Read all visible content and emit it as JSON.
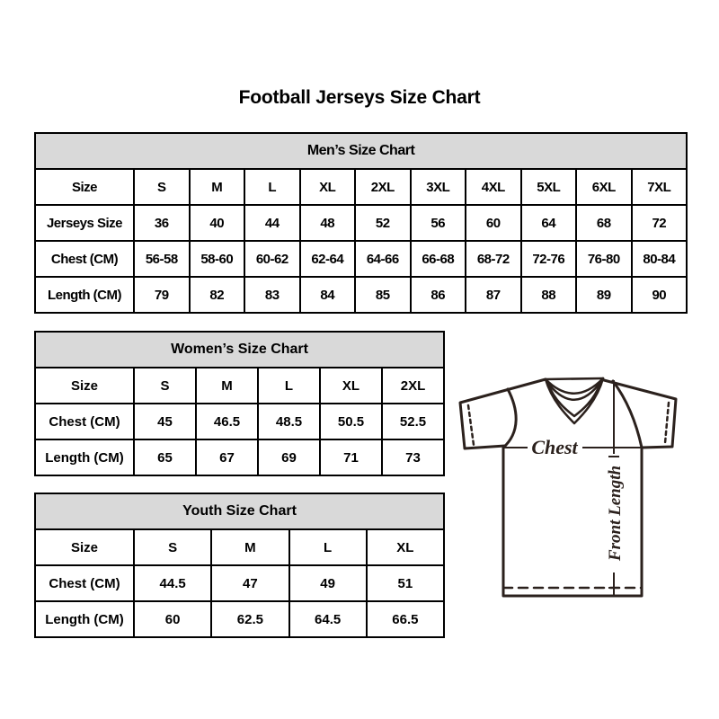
{
  "page": {
    "title": "Football Jerseys Size Chart"
  },
  "tables": {
    "men": {
      "header": "Men’s Size Chart",
      "rows": [
        {
          "label": "Size",
          "values": [
            "S",
            "M",
            "L",
            "XL",
            "2XL",
            "3XL",
            "4XL",
            "5XL",
            "6XL",
            "7XL"
          ]
        },
        {
          "label": "Jerseys Size",
          "values": [
            "36",
            "40",
            "44",
            "48",
            "52",
            "56",
            "60",
            "64",
            "68",
            "72"
          ]
        },
        {
          "label": "Chest (CM)",
          "values": [
            "56-58",
            "58-60",
            "60-62",
            "62-64",
            "64-66",
            "66-68",
            "68-72",
            "72-76",
            "76-80",
            "80-84"
          ]
        },
        {
          "label": "Length (CM)",
          "values": [
            "79",
            "82",
            "83",
            "84",
            "85",
            "86",
            "87",
            "88",
            "89",
            "90"
          ]
        }
      ]
    },
    "women": {
      "header": "Women’s Size Chart",
      "rows": [
        {
          "label": "Size",
          "values": [
            "S",
            "M",
            "L",
            "XL",
            "2XL"
          ]
        },
        {
          "label": "Chest (CM)",
          "values": [
            "45",
            "46.5",
            "48.5",
            "50.5",
            "52.5"
          ]
        },
        {
          "label": "Length (CM)",
          "values": [
            "65",
            "67",
            "69",
            "71",
            "73"
          ]
        }
      ]
    },
    "youth": {
      "header": "Youth Size Chart",
      "rows": [
        {
          "label": "Size",
          "values": [
            "S",
            "M",
            "L",
            "XL"
          ]
        },
        {
          "label": "Chest (CM)",
          "values": [
            "44.5",
            "47",
            "49",
            "51"
          ]
        },
        {
          "label": "Length (CM)",
          "values": [
            "60",
            "62.5",
            "64.5",
            "66.5"
          ]
        }
      ]
    }
  },
  "diagram": {
    "chest_label": "Chest",
    "front_length_label": "Front Length"
  },
  "colors": {
    "table_header_bg": "#d9d9d9",
    "table_border": "#000000",
    "jersey_outline": "#2b211d",
    "text": "#000000"
  }
}
